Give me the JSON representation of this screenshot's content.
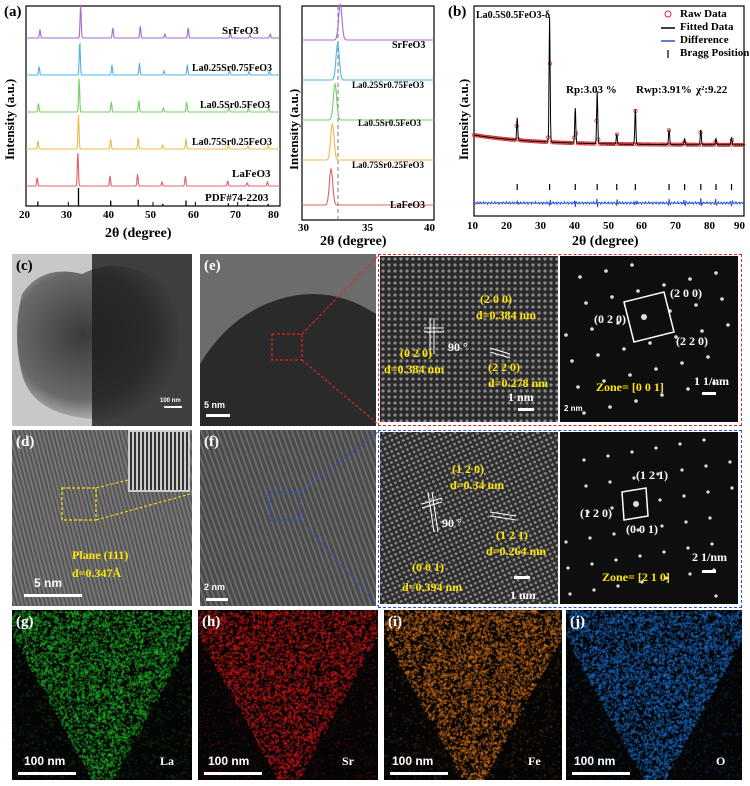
{
  "chart_data": [
    {
      "panel": "(a)",
      "type": "line",
      "xlabel": "2θ (degree)",
      "ylabel": "Intensity (a.u.)",
      "xlim": [
        20,
        80
      ],
      "xticks": [
        "20",
        "30",
        "40",
        "50",
        "60",
        "70",
        "80"
      ],
      "peak_positions": [
        22.8,
        32.4,
        40.0,
        46.5,
        52.3,
        57.8,
        67.8,
        72.4,
        77.2
      ],
      "series": [
        {
          "name": "SrFeO3",
          "color": "#a56bd0"
        },
        {
          "name": "La0.25Sr0.75FeO3",
          "color": "#4fb3ea"
        },
        {
          "name": "La0.5Sr0.5FeO3",
          "color": "#78cc6a"
        },
        {
          "name": "La0.75Sr0.25FeO3",
          "color": "#f2b84b"
        },
        {
          "name": "LaFeO3",
          "color": "#e0606a"
        }
      ],
      "reference": "PDF#74-2203"
    },
    {
      "panel": "zoom",
      "type": "line",
      "xlabel": "2θ (degree)",
      "ylabel": "Intensity (a.u.)",
      "xlim": [
        30,
        40
      ],
      "xticks": [
        "30",
        "35",
        "40"
      ],
      "series": [
        {
          "name": "SrFeO3",
          "color": "#a56bd0",
          "peak": 32.9
        },
        {
          "name": "La0.25Sr0.75FeO3",
          "color": "#4fb3ea",
          "peak": 32.7
        },
        {
          "name": "La0.5Sr0.5FeO3",
          "color": "#78cc6a",
          "peak": 32.5
        },
        {
          "name": "La0.75Sr0.25FeO3",
          "color": "#f2b84b",
          "peak": 32.3
        },
        {
          "name": "LaFeO3",
          "color": "#e0606a",
          "peak": 32.2
        }
      ]
    },
    {
      "panel": "(b)",
      "type": "scatter",
      "title": "La0.5S0.5FeO3-δ",
      "xlabel": "2θ (degree)",
      "ylabel": "Intensity (a.u.)",
      "xlim": [
        10,
        90
      ],
      "xticks": [
        "10",
        "20",
        "30",
        "40",
        "50",
        "60",
        "70",
        "80",
        "90"
      ],
      "legend": [
        "Raw Data",
        "Fitted Data",
        "Difference",
        "Bragg Position"
      ],
      "stats": {
        "rp": "Rp:3.03 %",
        "rwp": "Rwp:3.91%",
        "chi": "χ²:9.22"
      },
      "bragg_positions": [
        22.8,
        32.4,
        40.0,
        46.5,
        52.3,
        57.8,
        67.8,
        72.4,
        77.2,
        81.7,
        86.3
      ]
    }
  ],
  "labels": {
    "a": "(a)",
    "b": "(b)",
    "c": "(c)",
    "d": "(d)",
    "e": "(e)",
    "f": "(f)",
    "g": "(g)",
    "h": "(h)",
    "i": "(i)",
    "j": "(j)"
  },
  "panel_a": {
    "ylabel": "Intensity (a.u.)",
    "xlabel": "2θ (degree)",
    "series_labels": [
      "SrFeO",
      "La",
      "La",
      "La",
      "LaFeO"
    ],
    "reference": "PDF#74-2203"
  },
  "panel_b": {
    "legend_raw": "Raw Data",
    "legend_fit": "Fitted Data",
    "legend_diff": "Difference",
    "legend_bragg": "Bragg Position",
    "rp": "Rp:3.03 %",
    "rwp": "Rwp:3.91%",
    "chi": "χ²:9.22"
  },
  "panel_c": {
    "scale": "100 nm"
  },
  "panel_d": {
    "plane": "Plane (111)",
    "d": "d=0.347Å",
    "scale": "5 nm"
  },
  "panel_e": {
    "scale": "5 nm",
    "hr_200": "(2 0 0)",
    "hr_d1": "d=0.384 nm",
    "hr_angle": "90 °",
    "hr_020": "(0 2 0)",
    "hr_d2": "d=0.384 nm",
    "hr_220": "(2 2 0)",
    "hr_d3": "d=0.278 nm",
    "hr_scale": "1 nm",
    "fft_200": "(2 0 0)",
    "fft_020": "(0 2 0)",
    "fft_220": "(2 2 0)",
    "fft_scale_nm": "2 nm",
    "fft_scale": "1 1/nm",
    "zone": "Zone= [0 0 1]"
  },
  "panel_f": {
    "scale": "2 nm",
    "hr_120": "(1 2 0)",
    "hr_d1": "d=0.34 nm",
    "hr_angle": "90 °",
    "hr_121": "(1 2 1)",
    "hr_d2": "d=0.264 nm",
    "hr_001": "(0 0 1)",
    "hr_d3": "d=0.394 nm",
    "hr_scale": "1 nm",
    "fft_121": "(1 2 1)",
    "fft_120": "(1 2 0)",
    "fft_001": "(0 0 1)",
    "fft_scale": "2 1/nm",
    "zone": "Zone= [2 1 0]"
  },
  "eds": {
    "la": "La",
    "sr": "Sr",
    "fe": "Fe",
    "o": "O",
    "scale": "100 nm",
    "la_color": "#22c42a",
    "sr_color": "#e01818",
    "fe_color": "#e47a1a",
    "o_color": "#1a78e0"
  }
}
